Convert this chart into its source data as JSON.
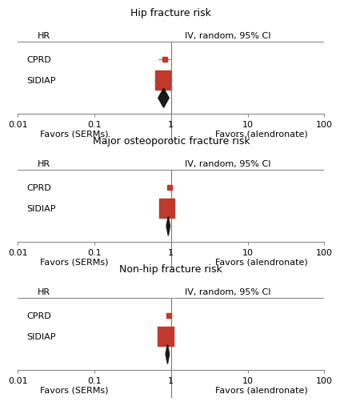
{
  "panels": [
    {
      "title": "Hip fracture risk",
      "cprd": {
        "hr": 0.82,
        "ci_low": 0.68,
        "ci_high": 0.99
      },
      "sidiap": {
        "hr": 0.78,
        "ci_low": 0.6,
        "ci_high": 1.01
      },
      "diamond": {
        "hr": 0.8,
        "ci_low": 0.68,
        "ci_high": 0.94
      }
    },
    {
      "title": "Major osteoporotic fracture risk",
      "cprd": {
        "hr": 0.95,
        "ci_low": 0.9,
        "ci_high": 1.0
      },
      "sidiap": {
        "hr": 0.88,
        "ci_low": 0.78,
        "ci_high": 0.99
      },
      "diamond": {
        "hr": 0.92,
        "ci_low": 0.87,
        "ci_high": 0.97
      }
    },
    {
      "title": "Non-hip fracture risk",
      "cprd": {
        "hr": 0.93,
        "ci_low": 0.88,
        "ci_high": 0.98
      },
      "sidiap": {
        "hr": 0.85,
        "ci_low": 0.75,
        "ci_high": 0.96
      },
      "diamond": {
        "hr": 0.9,
        "ci_low": 0.85,
        "ci_high": 0.95
      }
    }
  ],
  "xlim": [
    0.01,
    100
  ],
  "xticks": [
    0.01,
    0.1,
    1,
    10,
    100
  ],
  "xticklabels": [
    "0.01",
    "0.1",
    "1",
    "10",
    "100"
  ],
  "xlabel_left": "Favors (SERMs)",
  "xlabel_right": "Favors (alendronate)",
  "col_header_hr": "HR",
  "col_header_ci": "IV, random, 95% CI",
  "row_labels": [
    "CPRD",
    "SIDIAP"
  ],
  "square_color": "#C0392B",
  "diamond_color": "#1a1a1a",
  "line_color": "#777777",
  "bg_color": "#ffffff",
  "font_size": 8,
  "title_font_size": 9
}
